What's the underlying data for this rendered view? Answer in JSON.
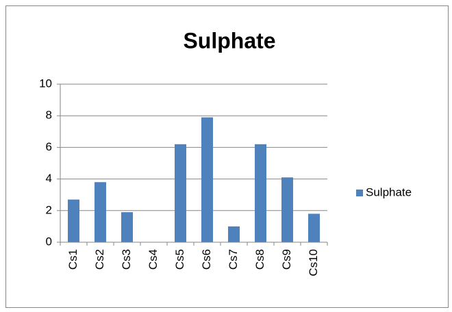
{
  "chart_data": {
    "type": "bar",
    "title": "Sulphate",
    "categories": [
      "Cs1",
      "Cs2",
      "Cs3",
      "Cs4",
      "Cs5",
      "Cs6",
      "Cs7",
      "Cs8",
      "Cs9",
      "Cs10"
    ],
    "series": [
      {
        "name": "Sulphate",
        "color": "#4f81bd",
        "values": [
          2.7,
          3.8,
          1.9,
          0,
          6.2,
          7.9,
          1.0,
          6.2,
          4.1,
          1.8
        ]
      }
    ],
    "ylim": [
      0,
      10
    ],
    "yticks": [
      0,
      2,
      4,
      6,
      8,
      10
    ],
    "grid": true,
    "legend": "right"
  }
}
